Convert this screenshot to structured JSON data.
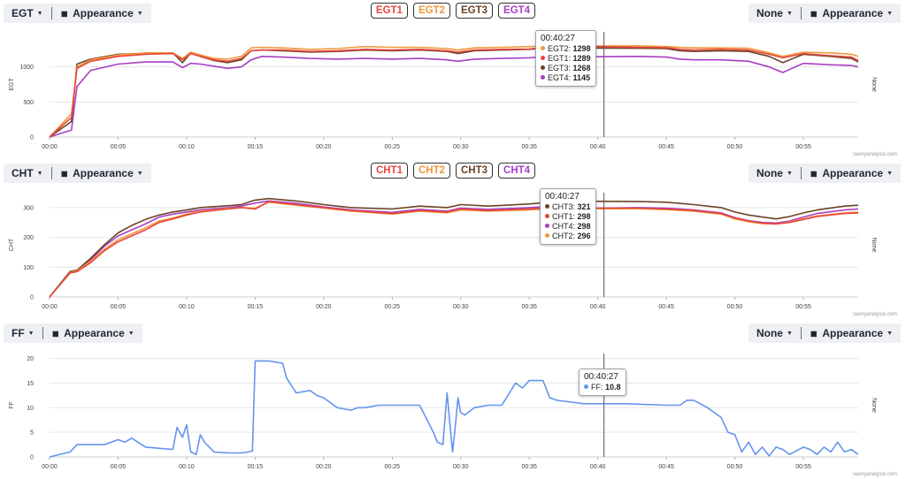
{
  "charts": [
    {
      "id": "egt",
      "metric_label": "EGT",
      "appearance_label": "Appearance",
      "right_select_label": "None",
      "right_appearance_label": "Appearance",
      "y_axis_label": "EGT",
      "right_axis_label": "None",
      "watermark": "savvyanalysis.com",
      "legend": [
        {
          "label": "EGT1",
          "color": "#e8463c"
        },
        {
          "label": "EGT2",
          "color": "#f0993c"
        },
        {
          "label": "EGT3",
          "color": "#6b4226"
        },
        {
          "label": "EGT4",
          "color": "#a93ec4"
        }
      ],
      "tooltip": {
        "time": "00:40:27",
        "rows": [
          {
            "label": "EGT2:",
            "value": "1298",
            "color": "#f0993c"
          },
          {
            "label": "EGT1:",
            "value": "1289",
            "color": "#e8463c"
          },
          {
            "label": "EGT3:",
            "value": "1268",
            "color": "#6b4226"
          },
          {
            "label": "EGT4:",
            "value": "1145",
            "color": "#a93ec4"
          }
        ]
      }
    },
    {
      "id": "cht",
      "metric_label": "CHT",
      "appearance_label": "Appearance",
      "right_select_label": "None",
      "right_appearance_label": "Appearance",
      "y_axis_label": "CHT",
      "right_axis_label": "None",
      "watermark": "savvyanalysis.com",
      "legend": [
        {
          "label": "CHT1",
          "color": "#e8463c"
        },
        {
          "label": "CHT2",
          "color": "#f0993c"
        },
        {
          "label": "CHT3",
          "color": "#6b4226"
        },
        {
          "label": "CHT4",
          "color": "#a93ec4"
        }
      ],
      "tooltip": {
        "time": "00:40:27",
        "rows": [
          {
            "label": "CHT3:",
            "value": "321",
            "color": "#6b4226"
          },
          {
            "label": "CHT1:",
            "value": "298",
            "color": "#e8463c"
          },
          {
            "label": "CHT4:",
            "value": "298",
            "color": "#a93ec4"
          },
          {
            "label": "CHT2:",
            "value": "296",
            "color": "#f0993c"
          }
        ]
      }
    },
    {
      "id": "ff",
      "metric_label": "FF",
      "appearance_label": "Appearance",
      "right_select_label": "None",
      "right_appearance_label": "Appearance",
      "y_axis_label": "FF",
      "right_axis_label": "None",
      "watermark": "savvyanalysis.com",
      "legend": [],
      "tooltip": {
        "time": "00:40:27",
        "rows": [
          {
            "label": "FF:",
            "value": "10.8",
            "color": "#6495ed"
          }
        ]
      }
    }
  ],
  "chart_data": [
    {
      "type": "line",
      "title": "",
      "xlabel": "",
      "ylabel": "EGT",
      "x_ticks": [
        "00:00",
        "00:05",
        "00:10",
        "00:15",
        "00:20",
        "00:25",
        "00:30",
        "00:35",
        "00:40",
        "00:45",
        "00:50",
        "00:55"
      ],
      "x_range_minutes": [
        0,
        59
      ],
      "ylim": [
        0,
        1500
      ],
      "y_ticks": [
        0,
        500,
        1000
      ],
      "grid": true,
      "cursor_minute": 40.45,
      "series": [
        {
          "name": "EGT1",
          "color": "#e8463c",
          "x": [
            0,
            1.6,
            2,
            3,
            5,
            7,
            9,
            9.7,
            10.3,
            11,
            12,
            13,
            14,
            14.7,
            15.5,
            17,
            19,
            21,
            23,
            25,
            27,
            29,
            29.8,
            31,
            33,
            35,
            36.3,
            38,
            40,
            43,
            45,
            46,
            47,
            49,
            51,
            52.5,
            53.5,
            55,
            57,
            58.5,
            59
          ],
          "y": [
            0,
            280,
            980,
            1080,
            1150,
            1180,
            1190,
            1100,
            1190,
            1150,
            1100,
            1080,
            1120,
            1230,
            1240,
            1240,
            1220,
            1230,
            1250,
            1240,
            1250,
            1230,
            1210,
            1240,
            1250,
            1255,
            1280,
            1285,
            1289,
            1280,
            1275,
            1250,
            1240,
            1250,
            1240,
            1180,
            1130,
            1190,
            1160,
            1140,
            1090
          ]
        },
        {
          "name": "EGT2",
          "color": "#f0993c",
          "x": [
            0,
            1.6,
            2,
            3,
            5,
            7,
            9,
            9.7,
            10.3,
            11,
            12,
            13,
            14,
            14.7,
            15.5,
            17,
            19,
            21,
            23,
            25,
            27,
            29,
            29.8,
            31,
            33,
            35,
            36.3,
            38,
            40,
            43,
            45,
            46,
            47,
            49,
            51,
            52.5,
            53.5,
            55,
            57,
            58.5,
            59
          ],
          "y": [
            0,
            330,
            1000,
            1100,
            1170,
            1200,
            1200,
            1120,
            1210,
            1170,
            1120,
            1110,
            1150,
            1270,
            1280,
            1270,
            1250,
            1260,
            1290,
            1280,
            1280,
            1260,
            1240,
            1270,
            1280,
            1290,
            1300,
            1300,
            1298,
            1300,
            1290,
            1280,
            1270,
            1270,
            1265,
            1200,
            1150,
            1210,
            1200,
            1180,
            1150
          ]
        },
        {
          "name": "EGT3",
          "color": "#6b4226",
          "x": [
            0,
            1.6,
            2,
            3,
            5,
            7,
            9,
            9.7,
            10.3,
            11,
            12,
            13,
            14,
            14.7,
            15.5,
            17,
            19,
            21,
            23,
            25,
            27,
            29,
            29.8,
            31,
            33,
            35,
            36.3,
            38,
            40,
            43,
            45,
            46,
            47,
            49,
            51,
            52.5,
            53.5,
            55,
            57,
            58.5,
            59
          ],
          "y": [
            0,
            220,
            1040,
            1110,
            1180,
            1190,
            1200,
            1060,
            1200,
            1150,
            1090,
            1060,
            1100,
            1230,
            1240,
            1230,
            1210,
            1220,
            1240,
            1230,
            1240,
            1220,
            1190,
            1230,
            1240,
            1250,
            1270,
            1270,
            1268,
            1265,
            1260,
            1230,
            1220,
            1230,
            1220,
            1150,
            1060,
            1180,
            1150,
            1120,
            1070
          ]
        },
        {
          "name": "EGT4",
          "color": "#a93ec4",
          "x": [
            0,
            1.6,
            2,
            3,
            5,
            7,
            9,
            9.7,
            10.3,
            11,
            12,
            13,
            14,
            14.7,
            15.5,
            17,
            19,
            21,
            23,
            25,
            27,
            29,
            29.8,
            31,
            33,
            35,
            36.3,
            38,
            40,
            43,
            45,
            46,
            47,
            49,
            51,
            52.5,
            53.5,
            55,
            57,
            58.5,
            59
          ],
          "y": [
            0,
            100,
            720,
            950,
            1040,
            1070,
            1070,
            990,
            1050,
            1040,
            1010,
            980,
            1000,
            1100,
            1150,
            1140,
            1120,
            1110,
            1120,
            1110,
            1120,
            1100,
            1080,
            1110,
            1120,
            1130,
            1150,
            1150,
            1145,
            1150,
            1140,
            1110,
            1100,
            1100,
            1080,
            1000,
            920,
            1050,
            1030,
            1020,
            1000
          ]
        }
      ]
    },
    {
      "type": "line",
      "title": "",
      "xlabel": "",
      "ylabel": "CHT",
      "x_ticks": [
        "00:00",
        "00:05",
        "00:10",
        "00:15",
        "00:20",
        "00:25",
        "00:30",
        "00:35",
        "00:40",
        "00:45",
        "00:50",
        "00:55"
      ],
      "x_range_minutes": [
        0,
        59
      ],
      "ylim": [
        0,
        350
      ],
      "y_ticks": [
        0,
        100,
        200,
        300
      ],
      "grid": true,
      "cursor_minute": 40.45,
      "series": [
        {
          "name": "CHT1",
          "color": "#e8463c",
          "x": [
            0,
            1.5,
            2,
            3,
            4,
            5,
            6,
            7,
            8,
            9,
            10,
            11,
            12,
            13,
            14,
            15,
            16,
            18,
            20,
            22,
            25,
            27,
            29,
            30,
            32,
            35,
            37,
            40,
            43,
            45,
            47,
            49,
            50,
            51,
            52,
            53,
            54,
            55,
            56,
            58,
            59
          ],
          "y": [
            0,
            80,
            85,
            115,
            155,
            185,
            205,
            225,
            250,
            262,
            275,
            285,
            290,
            295,
            300,
            295,
            320,
            310,
            300,
            290,
            280,
            290,
            285,
            295,
            290,
            295,
            300,
            298,
            298,
            295,
            290,
            280,
            265,
            255,
            248,
            245,
            250,
            260,
            270,
            280,
            282
          ]
        },
        {
          "name": "CHT2",
          "color": "#f0993c",
          "x": [
            0,
            1.5,
            2,
            3,
            4,
            5,
            6,
            7,
            8,
            9,
            10,
            11,
            12,
            13,
            14,
            15,
            16,
            18,
            20,
            22,
            25,
            27,
            29,
            30,
            32,
            35,
            37,
            40,
            43,
            45,
            47,
            49,
            50,
            51,
            52,
            53,
            54,
            55,
            56,
            58,
            59
          ],
          "y": [
            0,
            82,
            88,
            120,
            160,
            192,
            212,
            232,
            255,
            265,
            278,
            288,
            292,
            297,
            300,
            298,
            318,
            308,
            298,
            288,
            278,
            288,
            282,
            292,
            288,
            292,
            298,
            296,
            296,
            293,
            288,
            278,
            262,
            252,
            246,
            245,
            252,
            262,
            272,
            282,
            285
          ]
        },
        {
          "name": "CHT3",
          "color": "#6b4226",
          "x": [
            0,
            1.5,
            2,
            3,
            4,
            5,
            6,
            7,
            8,
            9,
            10,
            11,
            12,
            13,
            14,
            15,
            16,
            18,
            20,
            22,
            25,
            27,
            29,
            30,
            32,
            35,
            37,
            40,
            43,
            45,
            47,
            49,
            50,
            51,
            52,
            53,
            54,
            55,
            56,
            58,
            59
          ],
          "y": [
            0,
            85,
            90,
            130,
            175,
            215,
            240,
            260,
            275,
            285,
            292,
            300,
            303,
            306,
            310,
            325,
            330,
            322,
            310,
            300,
            295,
            305,
            300,
            310,
            305,
            312,
            320,
            321,
            320,
            318,
            310,
            300,
            285,
            275,
            268,
            262,
            270,
            282,
            292,
            305,
            308
          ]
        },
        {
          "name": "CHT4",
          "color": "#a93ec4",
          "x": [
            0,
            1.5,
            2,
            3,
            4,
            5,
            6,
            7,
            8,
            9,
            10,
            11,
            12,
            13,
            14,
            15,
            16,
            18,
            20,
            22,
            25,
            27,
            29,
            30,
            32,
            35,
            37,
            40,
            43,
            45,
            47,
            49,
            50,
            51,
            52,
            53,
            54,
            55,
            56,
            58,
            59
          ],
          "y": [
            0,
            85,
            90,
            125,
            170,
            205,
            225,
            245,
            268,
            278,
            285,
            292,
            296,
            300,
            305,
            315,
            322,
            314,
            302,
            292,
            284,
            294,
            288,
            298,
            294,
            300,
            305,
            298,
            300,
            298,
            292,
            282,
            266,
            256,
            250,
            248,
            255,
            268,
            280,
            292,
            295
          ]
        }
      ]
    },
    {
      "type": "line",
      "title": "",
      "xlabel": "",
      "ylabel": "FF",
      "x_ticks": [
        "00:00",
        "00:05",
        "00:10",
        "00:15",
        "00:20",
        "00:25",
        "00:30",
        "00:35",
        "00:40",
        "00:45",
        "00:50",
        "00:55"
      ],
      "x_range_minutes": [
        0,
        59
      ],
      "ylim": [
        0,
        21
      ],
      "y_ticks": [
        0,
        5,
        10,
        15,
        20
      ],
      "grid": true,
      "cursor_minute": 40.45,
      "series": [
        {
          "name": "FF",
          "color": "#6495ed",
          "x": [
            0,
            1.5,
            2,
            4,
            5,
            5.5,
            6,
            7,
            9,
            9.3,
            9.7,
            10,
            10.3,
            10.7,
            11,
            11.3,
            12,
            13,
            14,
            14.5,
            14.8,
            15,
            16,
            17,
            17.3,
            18,
            19,
            19.5,
            20,
            21,
            22,
            22.5,
            23,
            24,
            25,
            27,
            28,
            28.3,
            28.7,
            29,
            29.4,
            29.6,
            29.8,
            30,
            30.3,
            31,
            32,
            33,
            34,
            34.5,
            35,
            36,
            36.5,
            37,
            39,
            42,
            45,
            46,
            46.5,
            47,
            48,
            49,
            49.5,
            50,
            50.5,
            51,
            51.5,
            52,
            52.5,
            53,
            53.5,
            54,
            55,
            55.5,
            56,
            56.5,
            57,
            57.5,
            58,
            58.5,
            59
          ],
          "y": [
            0,
            1,
            2.5,
            2.5,
            3.5,
            3,
            3.8,
            2,
            1.5,
            6,
            4,
            6.5,
            1,
            0.5,
            4.5,
            3,
            1,
            0.8,
            0.8,
            1,
            1.2,
            19.5,
            19.5,
            19,
            16,
            13,
            13.5,
            12.5,
            12,
            10,
            9.5,
            10,
            10,
            10.5,
            10.5,
            10.5,
            5,
            3,
            2.5,
            13,
            1,
            6,
            12,
            9,
            8.5,
            10,
            10.5,
            10.5,
            15,
            14,
            15.5,
            15.5,
            12,
            11.5,
            10.8,
            10.8,
            10.5,
            10.5,
            11.5,
            11.5,
            10,
            8,
            5,
            4.5,
            1,
            3,
            0.5,
            2,
            0.2,
            2,
            1.5,
            0.5,
            2,
            1.5,
            0.5,
            2,
            1,
            3,
            1,
            1.5,
            0.5
          ]
        }
      ]
    }
  ]
}
